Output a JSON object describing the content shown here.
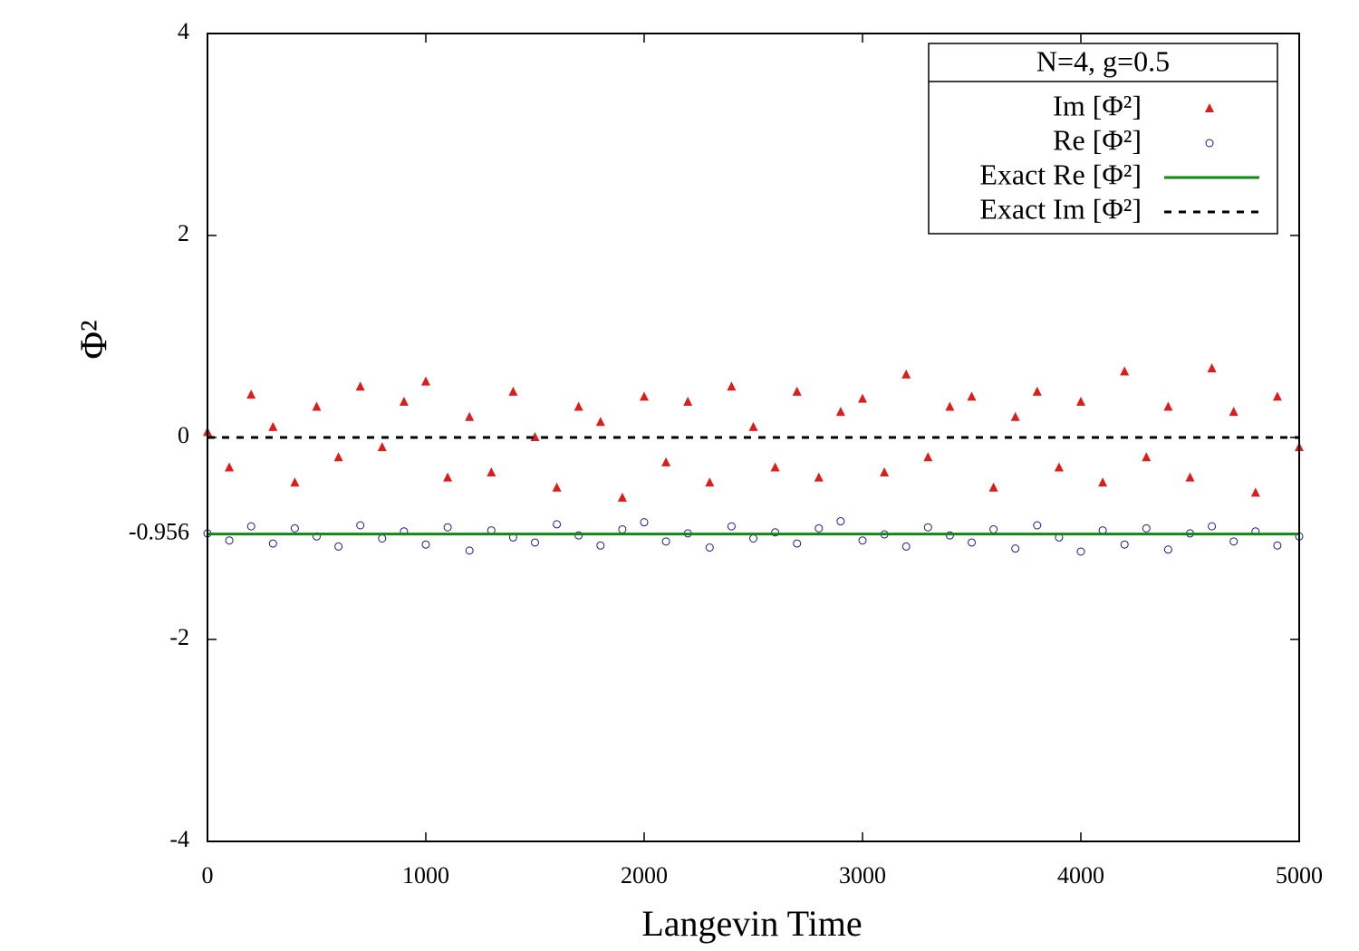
{
  "chart_data": {
    "type": "scatter",
    "legend_title": "N=4, g=0.5",
    "x_label": "Langevin Time",
    "y_label": "Φ²",
    "xlim": [
      0,
      5000
    ],
    "ylim": [
      -4,
      4
    ],
    "xticks": [
      0,
      1000,
      2000,
      3000,
      4000,
      5000
    ],
    "yticks": [
      -4,
      -2,
      -0.956,
      0,
      2,
      4
    ],
    "legend": "upper right",
    "series": [
      {
        "name": "Im [Φ²]",
        "type": "scatter",
        "marker": "triangle",
        "color": "#dd1c1c",
        "x": [
          0,
          100,
          200,
          300,
          400,
          500,
          600,
          700,
          800,
          900,
          1000,
          1100,
          1200,
          1300,
          1400,
          1500,
          1600,
          1700,
          1800,
          1900,
          2000,
          2100,
          2200,
          2300,
          2400,
          2500,
          2600,
          2700,
          2800,
          2900,
          3000,
          3100,
          3200,
          3300,
          3400,
          3500,
          3600,
          3700,
          3800,
          3900,
          4000,
          4100,
          4200,
          4300,
          4400,
          4500,
          4600,
          4700,
          4800,
          4900,
          5000
        ],
        "values": [
          0.05,
          -0.3,
          0.42,
          0.1,
          -0.45,
          0.3,
          -0.2,
          0.5,
          -0.1,
          0.35,
          0.55,
          -0.4,
          0.2,
          -0.35,
          0.45,
          0.0,
          -0.5,
          0.3,
          0.15,
          -0.6,
          0.4,
          -0.25,
          0.35,
          -0.45,
          0.5,
          0.1,
          -0.3,
          0.45,
          -0.4,
          0.25,
          0.38,
          -0.35,
          0.62,
          -0.2,
          0.3,
          0.4,
          -0.5,
          0.2,
          0.45,
          -0.3,
          0.35,
          -0.45,
          0.65,
          -0.2,
          0.3,
          -0.4,
          0.68,
          0.25,
          -0.55,
          0.4,
          -0.1
        ]
      },
      {
        "name": "Re [Φ²]",
        "type": "scatter",
        "marker": "circle",
        "color": "#1a1a8c",
        "x": [
          0,
          100,
          200,
          300,
          400,
          500,
          600,
          700,
          800,
          900,
          1000,
          1100,
          1200,
          1300,
          1400,
          1500,
          1600,
          1700,
          1800,
          1900,
          2000,
          2100,
          2200,
          2300,
          2400,
          2500,
          2600,
          2700,
          2800,
          2900,
          3000,
          3100,
          3200,
          3300,
          3400,
          3500,
          3600,
          3700,
          3800,
          3900,
          4000,
          4100,
          4200,
          4300,
          4400,
          4500,
          4600,
          4700,
          4800,
          4900,
          5000
        ],
        "values": [
          -0.95,
          -1.02,
          -0.88,
          -1.05,
          -0.9,
          -0.98,
          -1.08,
          -0.87,
          -1.0,
          -0.93,
          -1.06,
          -0.89,
          -1.12,
          -0.92,
          -0.99,
          -1.04,
          -0.86,
          -0.97,
          -1.07,
          -0.91,
          -0.84,
          -1.03,
          -0.95,
          -1.09,
          -0.88,
          -1.0,
          -0.94,
          -1.05,
          -0.9,
          -0.83,
          -1.02,
          -0.96,
          -1.08,
          -0.89,
          -0.97,
          -1.04,
          -0.91,
          -1.1,
          -0.87,
          -0.99,
          -1.13,
          -0.92,
          -1.06,
          -0.9,
          -1.11,
          -0.95,
          -0.88,
          -1.03,
          -0.93,
          -1.07,
          -0.98
        ]
      },
      {
        "name": "Exact Re [Φ²]",
        "type": "line",
        "dash": false,
        "color": "#118811",
        "x": [
          0,
          5000
        ],
        "values": [
          -0.956,
          -0.956
        ]
      },
      {
        "name": "Exact Im [Φ²]",
        "type": "line",
        "dash": true,
        "color": "#000000",
        "x": [
          0,
          5000
        ],
        "values": [
          0,
          0
        ]
      }
    ]
  }
}
